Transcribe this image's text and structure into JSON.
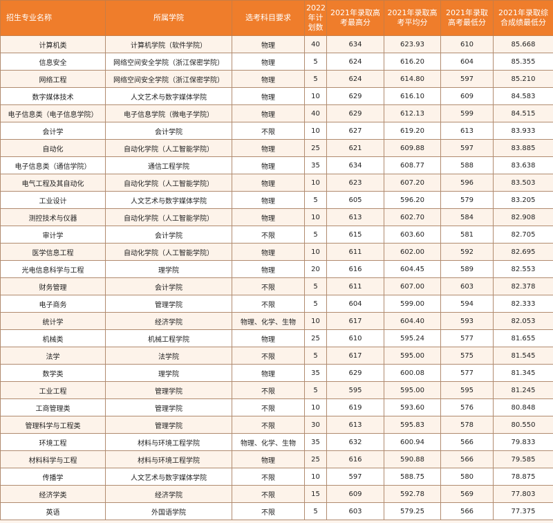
{
  "headers": [
    "招生专业名称",
    "所属学院",
    "选考科目要求",
    "2022年计划数",
    "2021年录取高考最高分",
    "2021年录取高考平均分",
    "2021年录取高考最低分",
    "2021年录取综合成绩最低分"
  ],
  "rows": [
    [
      "计算机类",
      "计算机学院（软件学院）",
      "物理",
      "40",
      "634",
      "623.93",
      "610",
      "85.668"
    ],
    [
      "信息安全",
      "网络空间安全学院（浙江保密学院）",
      "物理",
      "5",
      "624",
      "616.20",
      "604",
      "85.355"
    ],
    [
      "网络工程",
      "网络空间安全学院（浙江保密学院）",
      "物理",
      "5",
      "624",
      "614.80",
      "597",
      "85.210"
    ],
    [
      "数字媒体技术",
      "人文艺术与数字媒体学院",
      "物理",
      "10",
      "629",
      "616.10",
      "609",
      "84.583"
    ],
    [
      "电子信息类（电子信息学院）",
      "电子信息学院（微电子学院）",
      "物理",
      "40",
      "629",
      "612.13",
      "599",
      "84.515"
    ],
    [
      "会计学",
      "会计学院",
      "不限",
      "10",
      "627",
      "619.20",
      "613",
      "83.933"
    ],
    [
      "自动化",
      "自动化学院（人工智能学院）",
      "物理",
      "25",
      "621",
      "609.88",
      "597",
      "83.885"
    ],
    [
      "电子信息类（通信学院）",
      "通信工程学院",
      "物理",
      "35",
      "634",
      "608.77",
      "588",
      "83.638"
    ],
    [
      "电气工程及其自动化",
      "自动化学院（人工智能学院）",
      "物理",
      "10",
      "623",
      "607.20",
      "596",
      "83.503"
    ],
    [
      "工业设计",
      "人文艺术与数字媒体学院",
      "物理",
      "5",
      "605",
      "596.20",
      "579",
      "83.205"
    ],
    [
      "测控技术与仪器",
      "自动化学院（人工智能学院）",
      "物理",
      "10",
      "613",
      "602.70",
      "584",
      "82.908"
    ],
    [
      "审计学",
      "会计学院",
      "不限",
      "5",
      "615",
      "603.60",
      "581",
      "82.705"
    ],
    [
      "医学信息工程",
      "自动化学院（人工智能学院）",
      "物理",
      "10",
      "611",
      "602.00",
      "592",
      "82.695"
    ],
    [
      "光电信息科学与工程",
      "理学院",
      "物理",
      "20",
      "616",
      "604.45",
      "589",
      "82.553"
    ],
    [
      "财务管理",
      "会计学院",
      "不限",
      "5",
      "611",
      "607.00",
      "603",
      "82.378"
    ],
    [
      "电子商务",
      "管理学院",
      "不限",
      "5",
      "604",
      "599.00",
      "594",
      "82.333"
    ],
    [
      "统计学",
      "经济学院",
      "物理、化学、生物",
      "10",
      "617",
      "604.40",
      "593",
      "82.053"
    ],
    [
      "机械类",
      "机械工程学院",
      "物理",
      "25",
      "610",
      "595.24",
      "577",
      "81.655"
    ],
    [
      "法学",
      "法学院",
      "不限",
      "5",
      "617",
      "595.00",
      "575",
      "81.545"
    ],
    [
      "数学类",
      "理学院",
      "物理",
      "35",
      "629",
      "600.08",
      "577",
      "81.345"
    ],
    [
      "工业工程",
      "管理学院",
      "不限",
      "5",
      "595",
      "595.00",
      "595",
      "81.245"
    ],
    [
      "工商管理类",
      "管理学院",
      "不限",
      "10",
      "619",
      "593.60",
      "576",
      "80.848"
    ],
    [
      "管理科学与工程类",
      "管理学院",
      "不限",
      "30",
      "613",
      "595.83",
      "578",
      "80.550"
    ],
    [
      "环境工程",
      "材料与环境工程学院",
      "物理、化学、生物",
      "35",
      "632",
      "600.94",
      "566",
      "79.833"
    ],
    [
      "材料科学与工程",
      "材料与环境工程学院",
      "物理",
      "25",
      "616",
      "590.88",
      "566",
      "79.585"
    ],
    [
      "传播学",
      "人文艺术与数字媒体学院",
      "不限",
      "10",
      "597",
      "588.75",
      "580",
      "78.875"
    ],
    [
      "经济学类",
      "经济学院",
      "不限",
      "15",
      "609",
      "592.78",
      "569",
      "77.803"
    ],
    [
      "英语",
      "外国语学院",
      "不限",
      "5",
      "603",
      "579.25",
      "566",
      "77.375"
    ]
  ]
}
